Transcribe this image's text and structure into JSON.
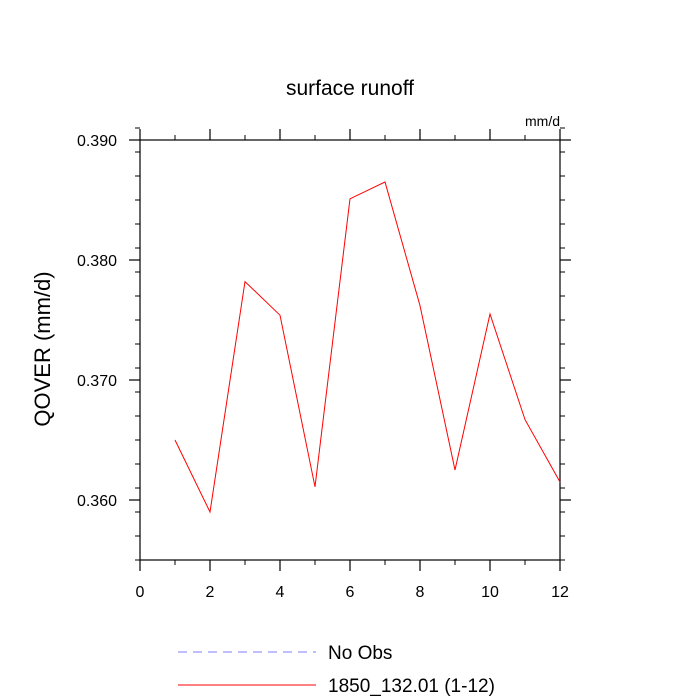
{
  "chart_data": {
    "type": "line",
    "title": "surface runoff",
    "units": "mm/d",
    "ylabel": "QOVER  (mm/d)",
    "xlabel": "",
    "xlim": [
      0,
      12
    ],
    "ylim": [
      0.355,
      0.39
    ],
    "xticks": [
      0,
      2,
      4,
      6,
      8,
      10,
      12
    ],
    "yticks": [
      0.36,
      0.37,
      0.38,
      0.39
    ],
    "ytick_labels": [
      "0.360",
      "0.370",
      "0.380",
      "0.390"
    ],
    "grid": false,
    "legend_position": "bottom",
    "series": [
      {
        "name": "No Obs",
        "color": "#7f7fff",
        "dashed": true,
        "x": [],
        "y": []
      },
      {
        "name": "1850_132.01 (1-12)",
        "color": "#ff0000",
        "dashed": false,
        "x": [
          1,
          2,
          3,
          4,
          5,
          6,
          7,
          8,
          9,
          10,
          11,
          12
        ],
        "y": [
          0.365,
          0.359,
          0.3782,
          0.3754,
          0.3611,
          0.3851,
          0.3865,
          0.3762,
          0.3625,
          0.3755,
          0.3667,
          0.3615
        ]
      }
    ]
  }
}
